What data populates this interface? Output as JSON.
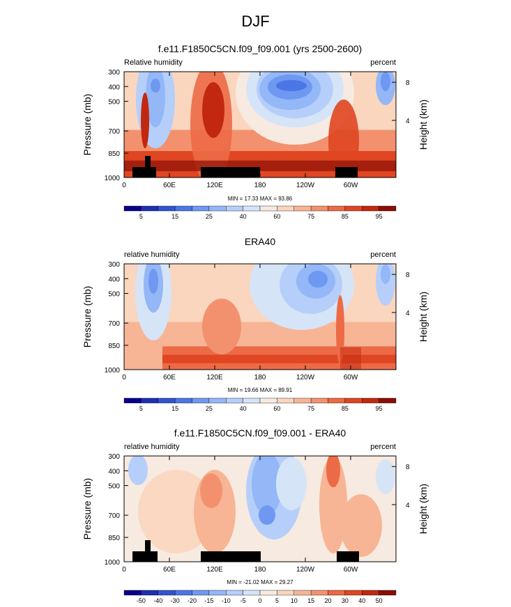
{
  "page_title": "DJF",
  "palette": [
    "#08008c",
    "#1e2fb4",
    "#2f54d4",
    "#4a76e6",
    "#6f98f2",
    "#93b7f7",
    "#b5cffa",
    "#d6e4f8",
    "#f7eae1",
    "#fad6bf",
    "#f7b595",
    "#f3916e",
    "#ec6a45",
    "#df4621",
    "#c1280f",
    "#8a0e06"
  ],
  "chart_data": [
    {
      "type": "heatmap",
      "title": "f.e11.F1850C5CN.f09_f09.001 (yrs 2500-2600)",
      "variable_label": "Relative humidity",
      "units_label": "percent",
      "ylabel": "Pressure (mb)",
      "y2label": "Height (km)",
      "x_ticks": [
        "0",
        "60E",
        "120E",
        "180",
        "120W",
        "60W"
      ],
      "y_ticks": [
        "300",
        "400",
        "500",
        "700",
        "850",
        "1000"
      ],
      "y2_ticks": [
        "8",
        "4"
      ],
      "min_max_text": "MIN = 17.33  MAX = 93.86",
      "min": 17.33,
      "max": 93.86,
      "colorbar_labels": [
        "5",
        "15",
        "25",
        "40",
        "60",
        "75",
        "85",
        "95"
      ]
    },
    {
      "type": "heatmap",
      "title": "ERA40",
      "variable_label": "relative humidity",
      "units_label": "percent",
      "ylabel": "Pressure (mb)",
      "y2label": "Height (km)",
      "x_ticks": [
        "0",
        "60E",
        "120E",
        "180",
        "120W",
        "60W"
      ],
      "y_ticks": [
        "300",
        "400",
        "500",
        "700",
        "850",
        "1000"
      ],
      "y2_ticks": [
        "8",
        "4"
      ],
      "min_max_text": "MIN = 19.66  MAX = 89.91",
      "min": 19.66,
      "max": 89.91,
      "colorbar_labels": [
        "5",
        "15",
        "25",
        "40",
        "60",
        "75",
        "85",
        "95"
      ]
    },
    {
      "type": "heatmap",
      "title": "f.e11.F1850C5CN.f09_f09.001 - ERA40",
      "variable_label": "relative humidity",
      "units_label": "percent",
      "ylabel": "Pressure (mb)",
      "y2label": "Height (km)",
      "x_ticks": [
        "0",
        "60E",
        "120E",
        "180",
        "120W",
        "60W"
      ],
      "y_ticks": [
        "300",
        "400",
        "500",
        "700",
        "850",
        "1000"
      ],
      "y2_ticks": [
        "8",
        "4"
      ],
      "min_max_text": "MIN = -21.02  MAX = 29.27",
      "min": -21.02,
      "max": 29.27,
      "colorbar_labels": [
        "-50",
        "-40",
        "-30",
        "-20",
        "-15",
        "-10",
        "-5",
        "0",
        "5",
        "10",
        "15",
        "20",
        "30",
        "40",
        "50"
      ]
    }
  ]
}
